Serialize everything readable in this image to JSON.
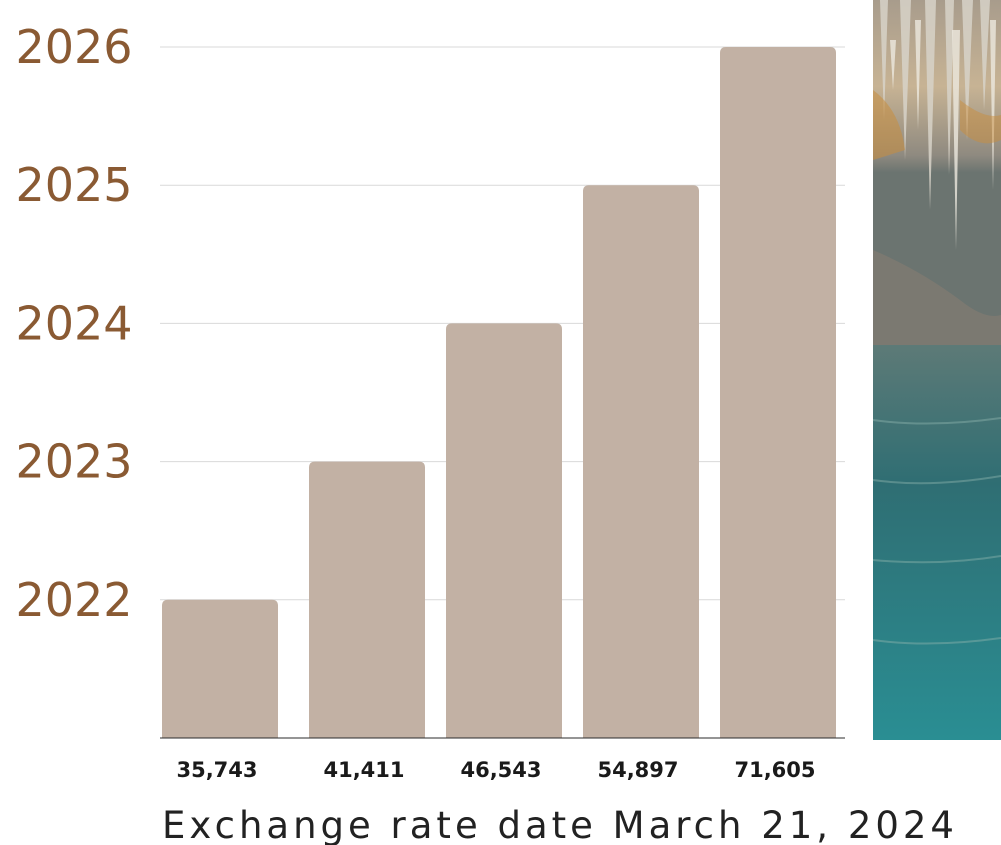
{
  "chart_data": {
    "type": "bar",
    "categories": [
      "35,743",
      "41,411",
      "46,543",
      "54,897",
      "71,605"
    ],
    "values": [
      2022,
      2023,
      2024,
      2025,
      2026
    ],
    "y_tick_labels": [
      "2022",
      "2023",
      "2024",
      "2025",
      "2026"
    ],
    "ylim": [
      2021,
      2026
    ],
    "grid": true,
    "title": "",
    "xlabel": "",
    "ylabel": "",
    "footnote": "Exchange rate date March 21, 2024"
  },
  "colors": {
    "bar": "#c2b1a4",
    "ytick": "#8a5a33",
    "grid": "#d9d9d9",
    "baseline": "#2b2b2b"
  },
  "photo": {
    "icon": "cave-water-photo"
  }
}
